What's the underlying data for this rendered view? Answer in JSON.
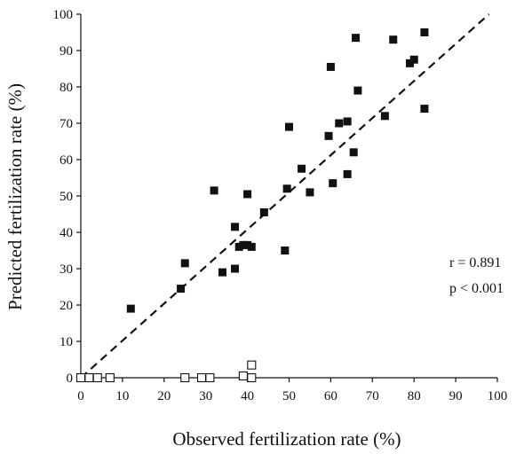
{
  "chart_data": {
    "type": "scatter",
    "title": "",
    "xlabel": "Observed fertilization rate (%)",
    "ylabel": "Predicted fertilization rate (%)",
    "xlim": [
      0,
      100
    ],
    "ylim": [
      0,
      100
    ],
    "xticks": [
      "0",
      "10",
      "20",
      "30",
      "40",
      "50",
      "60",
      "70",
      "80",
      "90",
      "100"
    ],
    "yticks": [
      "0",
      "10",
      "20",
      "30",
      "40",
      "50",
      "60",
      "70",
      "80",
      "90",
      "100"
    ],
    "grid": false,
    "legend": "none",
    "annotations": [
      "r = 0.891",
      "p < 0.001"
    ],
    "reference_line": {
      "style": "dashed",
      "color": "#111111",
      "from": [
        0,
        0
      ],
      "to": [
        98,
        100
      ]
    },
    "series": [
      {
        "marker": "filled-square",
        "color": "#111111",
        "x": [
          12,
          24,
          25,
          32,
          34,
          37,
          37,
          38,
          39,
          40,
          40,
          41,
          44,
          49,
          49.5,
          50,
          53,
          55,
          59.5,
          60,
          60.5,
          62,
          64,
          64,
          65.5,
          66,
          66.5,
          73,
          75,
          79,
          80,
          82.5,
          82.5
        ],
        "y": [
          19,
          24.5,
          31.5,
          51.5,
          29,
          30,
          41.5,
          36,
          36.5,
          50.5,
          36.5,
          36,
          45.5,
          35,
          52,
          69,
          57.5,
          51,
          66.5,
          85.5,
          53.5,
          70,
          70.5,
          56,
          62,
          93.5,
          79,
          72,
          93,
          86.5,
          87.5,
          95,
          74
        ]
      },
      {
        "marker": "open-square",
        "color": "#111111",
        "x": [
          0,
          2,
          4,
          7,
          25,
          29,
          31,
          39,
          41,
          41
        ],
        "y": [
          0,
          0,
          0,
          0,
          0,
          0,
          0,
          0.5,
          0,
          3.5
        ]
      }
    ]
  }
}
